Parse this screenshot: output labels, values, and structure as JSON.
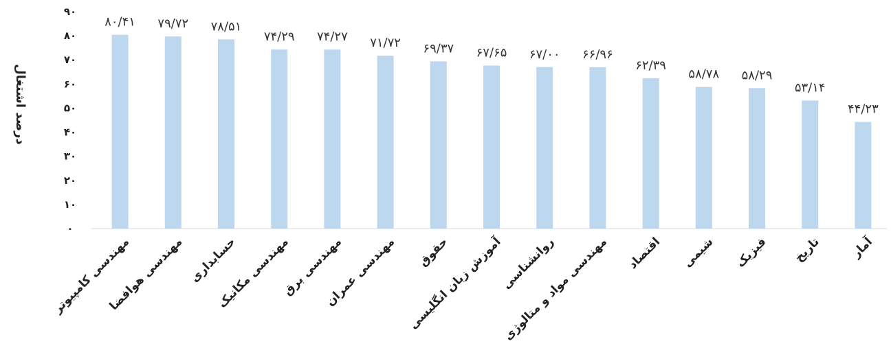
{
  "chart_data": {
    "type": "bar",
    "ylabel": "درصد اشتغال",
    "ylim": [
      0,
      90
    ],
    "yticks": [
      0,
      10,
      20,
      30,
      40,
      50,
      60,
      70,
      80,
      90
    ],
    "ytick_labels": [
      "۰",
      "۱۰",
      "۲۰",
      "۳۰",
      "۴۰",
      "۵۰",
      "۶۰",
      "۷۰",
      "۸۰",
      "۹۰"
    ],
    "grid": false,
    "bar_color": "#bdd7ee",
    "categories": [
      "مهندسی کامپیوتر",
      "مهندسی هوافضا",
      "حسابداری",
      "مهندسی مکانیک",
      "مهندسی برق",
      "مهندسی عمران",
      "حقوق",
      "آموزش زبان انگلیسی",
      "روانشناسی",
      "مهندسی مواد و متالوژی",
      "اقتصاد",
      "شیمی",
      "فیزیک",
      "تاریخ",
      "آمار"
    ],
    "values": [
      80.41,
      79.72,
      78.51,
      74.29,
      74.27,
      71.72,
      69.37,
      67.65,
      67.0,
      66.96,
      62.39,
      58.78,
      58.29,
      53.14,
      44.23
    ],
    "value_labels": [
      "۸۰/۴۱",
      "۷۹/۷۲",
      "۷۸/۵۱",
      "۷۴/۲۹",
      "۷۴/۲۷",
      "۷۱/۷۲",
      "۶۹/۳۷",
      "۶۷/۶۵",
      "۶۷/۰۰",
      "۶۶/۹۶",
      "۶۲/۳۹",
      "۵۸/۷۸",
      "۵۸/۲۹",
      "۵۳/۱۴",
      "۴۴/۲۳"
    ]
  }
}
